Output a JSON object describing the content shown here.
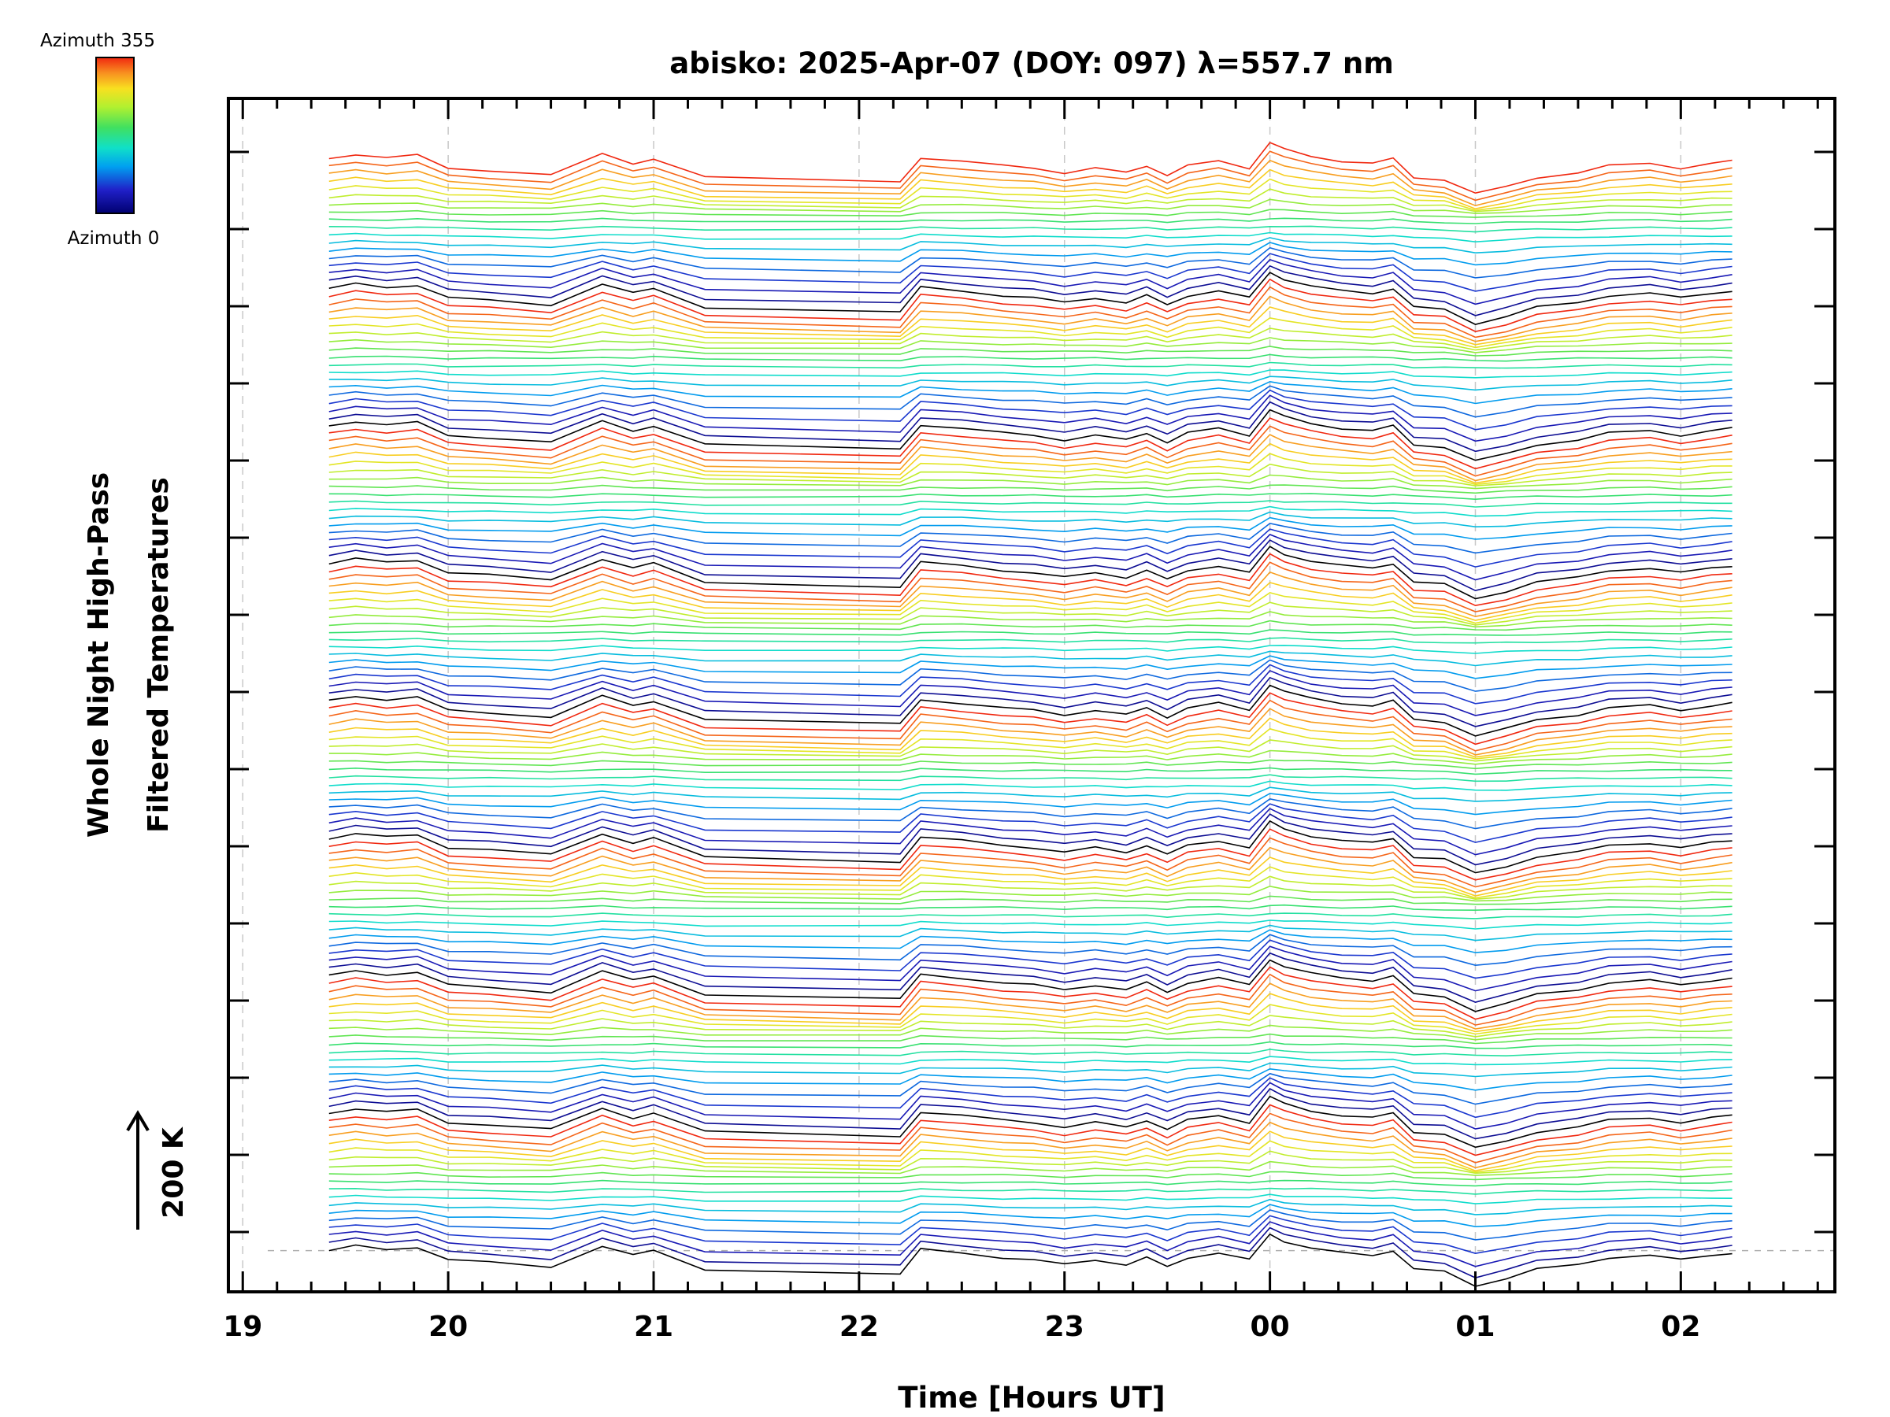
{
  "chart_data": {
    "type": "line",
    "title": "abisko: 2025-Apr-07 (DOY: 097) λ=557.7 nm",
    "xlabel": "Time [Hours UT]",
    "ylabel_lines": [
      "Whole Night High-Pass",
      "Filtered Temperatures"
    ],
    "scale_bar_label": "200 K",
    "colorbar": {
      "top_label": "Azimuth 355",
      "bottom_label": "Azimuth 0"
    },
    "x_ticks": [
      "19",
      "20",
      "21",
      "22",
      "23",
      "00",
      "01",
      "02"
    ],
    "x_tick_hours": [
      19,
      20,
      21,
      22,
      23,
      24,
      25,
      26
    ],
    "xlim": [
      18.93,
      26.75
    ],
    "ylim_stack_units": [
      -1.2,
      33.5
    ],
    "stack_offset": 1,
    "n_series": 144,
    "azimuth_range_deg": [
      0,
      355
    ],
    "groups_of_azimuth_sweeps": 8,
    "series_per_sweep": 18,
    "time_hours_ut": [
      19.42,
      19.55,
      19.7,
      19.85,
      20.0,
      20.2,
      20.5,
      20.75,
      20.9,
      21.0,
      21.25,
      22.2,
      22.3,
      22.5,
      22.7,
      22.85,
      23.0,
      23.15,
      23.3,
      23.4,
      23.5,
      23.6,
      23.75,
      23.9,
      24.0,
      24.07,
      24.2,
      24.35,
      24.5,
      24.6,
      24.7,
      24.85,
      25.0,
      25.15,
      25.3,
      25.5,
      25.65,
      25.85,
      26.0,
      26.15,
      26.25
    ],
    "base_anomaly_profile_K": [
      0,
      20,
      5,
      15,
      -40,
      -50,
      -70,
      20,
      -20,
      0,
      -80,
      -100,
      5,
      -10,
      -30,
      -40,
      -60,
      -40,
      -60,
      -30,
      -70,
      -30,
      -10,
      -40,
      70,
      40,
      10,
      -10,
      -20,
      0,
      -80,
      -90,
      -150,
      -120,
      -80,
      -60,
      -30,
      -20,
      -40,
      -20,
      -10
    ],
    "grid": true
  }
}
